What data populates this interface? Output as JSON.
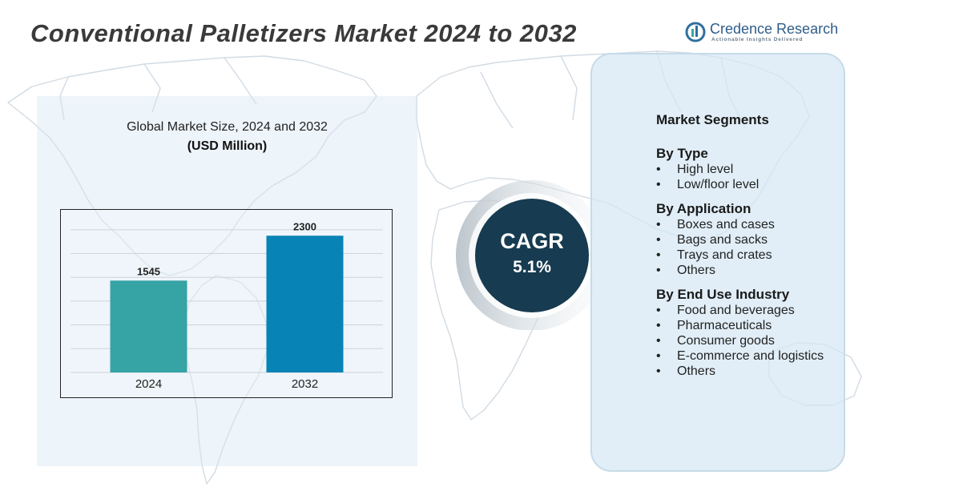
{
  "title": "Conventional Palletizers Market 2024 to 2032",
  "logo": {
    "name": "Credence Research",
    "tagline": "Actionable Insights Delivered"
  },
  "chart_data": {
    "type": "bar",
    "title": "Global Market Size, 2024 and 2032",
    "subtitle": "(USD Million)",
    "categories": [
      "2024",
      "2032"
    ],
    "values": [
      1545,
      2300
    ],
    "colors": [
      "#36a3a5",
      "#0883b5"
    ],
    "ylim": [
      0,
      2600
    ],
    "grid": true,
    "xlabel": "",
    "ylabel": ""
  },
  "cagr": {
    "label": "CAGR",
    "value": "5.1%"
  },
  "segments": {
    "heading": "Market Segments",
    "bullet": "•",
    "groups": [
      {
        "title": "By Type",
        "items": [
          "High level",
          "Low/floor level"
        ]
      },
      {
        "title": "By Application",
        "items": [
          "Boxes and cases",
          "Bags and sacks",
          "Trays and crates",
          "Others"
        ]
      },
      {
        "title": "By End Use Industry",
        "items": [
          "Food and beverages",
          "Pharmaceuticals",
          "Consumer goods",
          "E-commerce and logistics",
          "Others"
        ]
      }
    ]
  }
}
